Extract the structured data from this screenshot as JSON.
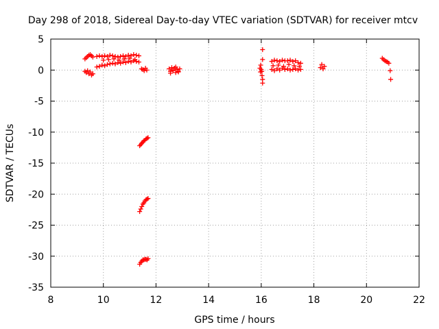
{
  "chart_data": {
    "type": "scatter",
    "title": "Day 298 of 2018, Sidereal Day-to-day VTEC variation (SDTVAR) for receiver mtcv",
    "xlabel": "GPS time / hours",
    "ylabel": "SDTVAR / TECUs",
    "xlim": [
      8,
      22
    ],
    "ylim": [
      -35,
      5
    ],
    "xticks": [
      8,
      10,
      12,
      14,
      16,
      18,
      20,
      22
    ],
    "yticks": [
      5,
      0,
      -5,
      -10,
      -15,
      -20,
      -25,
      -30,
      -35
    ],
    "grid": true,
    "marker": "+",
    "color": "#ff0000",
    "series": [
      {
        "name": "SDTVAR",
        "x": [
          9.3,
          9.35,
          9.4,
          9.45,
          9.5,
          9.55,
          9.6,
          9.3,
          9.35,
          9.4,
          9.45,
          9.5,
          9.55,
          9.6,
          9.75,
          9.85,
          9.95,
          10.05,
          10.15,
          10.25,
          10.35,
          10.45,
          10.55,
          10.65,
          10.75,
          10.85,
          10.95,
          11.05,
          11.15,
          11.25,
          11.35,
          9.75,
          9.85,
          9.95,
          10.05,
          10.15,
          10.25,
          10.35,
          10.45,
          10.55,
          10.65,
          10.75,
          10.85,
          10.95,
          11.05,
          11.15,
          11.25,
          11.35,
          10.0,
          10.2,
          10.4,
          10.6,
          10.8,
          11.0,
          11.2,
          11.45,
          11.5,
          11.55,
          11.6,
          11.65,
          12.5,
          12.55,
          12.6,
          12.65,
          12.7,
          12.75,
          12.8,
          12.85,
          12.9,
          12.55,
          12.65,
          12.75,
          12.85,
          11.38,
          11.42,
          11.46,
          11.5,
          11.54,
          11.58,
          11.62,
          11.66,
          11.7,
          11.38,
          11.42,
          11.46,
          11.5,
          11.54,
          11.58,
          11.62,
          11.66,
          11.7,
          11.38,
          11.42,
          11.46,
          11.5,
          11.54,
          11.58,
          11.62,
          11.66,
          11.7,
          15.95,
          15.97,
          16.0,
          16.02,
          16.05,
          16.05,
          16.05,
          16.05,
          15.98,
          16.03,
          16.4,
          16.5,
          16.6,
          16.7,
          16.8,
          16.9,
          17.0,
          17.1,
          17.2,
          17.3,
          17.4,
          17.5,
          16.4,
          16.5,
          16.6,
          16.7,
          16.8,
          16.9,
          17.0,
          17.1,
          17.2,
          17.3,
          17.4,
          17.5,
          16.45,
          16.65,
          16.85,
          17.05,
          17.25,
          17.45,
          18.25,
          18.3,
          18.35,
          18.4,
          20.6,
          20.65,
          20.7,
          20.75,
          20.8,
          20.85,
          20.9,
          20.92
        ],
        "y": [
          1.8,
          2.0,
          2.2,
          2.4,
          2.5,
          2.3,
          2.1,
          -0.2,
          -0.4,
          -0.1,
          -0.6,
          -0.3,
          -0.8,
          -0.6,
          2.2,
          2.3,
          2.2,
          2.3,
          2.2,
          2.4,
          2.3,
          2.2,
          2.1,
          2.2,
          2.3,
          2.2,
          2.4,
          2.3,
          2.5,
          2.4,
          2.3,
          0.5,
          0.6,
          0.8,
          0.7,
          0.9,
          1.0,
          1.1,
          1.0,
          1.2,
          1.1,
          1.3,
          1.2,
          1.4,
          1.3,
          1.5,
          1.4,
          1.3,
          1.6,
          1.7,
          1.8,
          1.6,
          1.8,
          1.9,
          1.7,
          0.2,
          0.1,
          -0.1,
          0.3,
          0.0,
          0.2,
          -0.2,
          0.4,
          0.0,
          0.3,
          -0.4,
          0.1,
          -0.3,
          0.2,
          -0.5,
          -0.1,
          0.5,
          -0.2,
          -31.3,
          -31.0,
          -30.8,
          -30.6,
          -30.6,
          -30.5,
          -30.5,
          -30.6,
          -30.4,
          -22.8,
          -22.4,
          -22.0,
          -21.6,
          -21.4,
          -21.1,
          -20.9,
          -20.8,
          -20.7,
          -12.2,
          -12.0,
          -11.8,
          -11.6,
          -11.4,
          -11.3,
          -11.1,
          -11.0,
          -10.9,
          0.3,
          -0.3,
          0.1,
          -0.2,
          3.3,
          1.7,
          -1.5,
          -2.1,
          0.8,
          -0.9,
          1.4,
          1.6,
          1.5,
          1.4,
          1.6,
          1.5,
          1.5,
          1.6,
          1.4,
          1.5,
          1.2,
          1.1,
          0.1,
          -0.1,
          0.2,
          0.0,
          0.3,
          0.1,
          0.2,
          0.0,
          0.1,
          0.2,
          0.0,
          0.1,
          0.7,
          0.8,
          0.6,
          0.9,
          0.7,
          0.6,
          0.4,
          0.9,
          0.2,
          0.6,
          1.9,
          1.7,
          1.5,
          1.4,
          1.3,
          1.1,
          -0.1,
          -1.5
        ]
      }
    ]
  }
}
